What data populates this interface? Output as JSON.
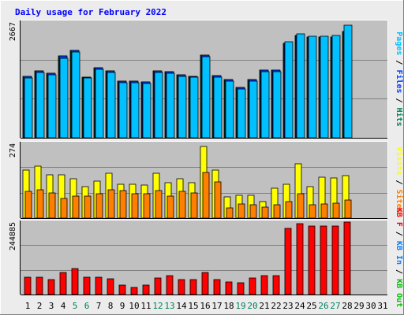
{
  "chart_data": {
    "type": "bar",
    "title": "Daily usage for February 2022",
    "days": [
      "1",
      "2",
      "3",
      "4",
      "5",
      "6",
      "7",
      "8",
      "9",
      "10",
      "11",
      "12",
      "13",
      "14",
      "15",
      "16",
      "17",
      "18",
      "19",
      "20",
      "21",
      "22",
      "23",
      "24",
      "25",
      "26",
      "27",
      "28",
      "29",
      "30",
      "31"
    ],
    "weekend_days": [
      5,
      6,
      12,
      13,
      19,
      20,
      26,
      27
    ],
    "colors": {
      "hits": "#00805c",
      "files": "#0040ff",
      "pages": "#00c0ff",
      "visits": "#ffff00",
      "sites": "#ff8000",
      "kbin": "#0080ff",
      "kbout": "#00c000",
      "kbf": "#ff0000",
      "weekend": "#00805c",
      "weekday": "#000000",
      "title": "#0000ff",
      "plot_bg": "#c0c0c0"
    },
    "panels": [
      {
        "id": "hits",
        "max_label": "2667",
        "max": 2667,
        "legend": [
          {
            "text": "Pages",
            "color_key": "pages"
          },
          {
            "text": " / ",
            "color_key": "weekday"
          },
          {
            "text": "Files",
            "color_key": "files"
          },
          {
            "text": " / ",
            "color_key": "weekday"
          },
          {
            "text": "Hits",
            "color_key": "hits"
          }
        ],
        "series": [
          {
            "name": "Hits",
            "color_key": "hits",
            "values": [
              1420,
              1535,
              1480,
              1880,
              2010,
              1400,
              1610,
              1540,
              1300,
              1300,
              1280,
              1540,
              1520,
              1450,
              1420,
              1900,
              1440,
              1340,
              1160,
              1350,
              1560,
              1555,
              2170,
              2350,
              2320,
              2320,
              2330,
              2450,
              0,
              0,
              0
            ]
          },
          {
            "name": "Files",
            "color_key": "files",
            "values": [
              1420,
              1535,
              1480,
              1880,
              2010,
              1400,
              1610,
              1540,
              1300,
              1300,
              1280,
              1540,
              1520,
              1450,
              1420,
              1900,
              1440,
              1340,
              1160,
              1350,
              1560,
              1555,
              2170,
              2350,
              2320,
              2320,
              2330,
              2450,
              0,
              0,
              0
            ]
          },
          {
            "name": "Pages",
            "color_key": "pages",
            "values": [
              1380,
              1500,
              1450,
              1840,
              1980,
              1370,
              1570,
              1500,
              1270,
              1270,
              1250,
              1505,
              1490,
              1420,
              1390,
              1870,
              1400,
              1300,
              1120,
              1310,
              1530,
              1525,
              2210,
              2390,
              2340,
              2340,
              2350,
              2600,
              0,
              0,
              0
            ]
          }
        ]
      },
      {
        "id": "visits",
        "max_label": "274",
        "max": 274,
        "legend": [
          {
            "text": "Visits",
            "color_key": "visits"
          },
          {
            "text": " / ",
            "color_key": "weekday"
          },
          {
            "text": "Sites",
            "color_key": "sites"
          }
        ],
        "series": [
          {
            "name": "Visits",
            "color_key": "visits",
            "values": [
              175,
              190,
              160,
              160,
              145,
              115,
              135,
              165,
              125,
              125,
              120,
              165,
              130,
              145,
              130,
              262,
              175,
              78,
              85,
              85,
              62,
              110,
              125,
              200,
              115,
              150,
              148,
              155,
              0,
              0,
              0
            ]
          },
          {
            "name": "Sites",
            "color_key": "sites",
            "values": [
              98,
              105,
              92,
              72,
              82,
              82,
              88,
              104,
              100,
              88,
              88,
              100,
              82,
              98,
              92,
              168,
              132,
              38,
              52,
              50,
              40,
              48,
              60,
              90,
              50,
              52,
              54,
              67,
              0,
              0,
              0
            ]
          }
        ]
      },
      {
        "id": "kbytes",
        "max_label": "244885",
        "max": 244885,
        "legend": [
          {
            "text": "KB F",
            "color_key": "kbf"
          },
          {
            "text": " / ",
            "color_key": "weekday"
          },
          {
            "text": "KB In",
            "color_key": "kbin"
          },
          {
            "text": " / ",
            "color_key": "weekday"
          },
          {
            "text": "KB Out",
            "color_key": "kbout"
          }
        ],
        "series": [
          {
            "name": "KB F",
            "color_key": "kbf",
            "values": [
              58000,
              58000,
              50000,
              75000,
              89000,
              58000,
              58000,
              54000,
              33000,
              24000,
              33000,
              56000,
              63000,
              50000,
              50000,
              74000,
              50000,
              42000,
              40000,
              55000,
              65000,
              63000,
              223000,
              239000,
              232000,
              231000,
              231000,
              244000,
              0,
              0,
              0
            ]
          }
        ]
      }
    ]
  }
}
